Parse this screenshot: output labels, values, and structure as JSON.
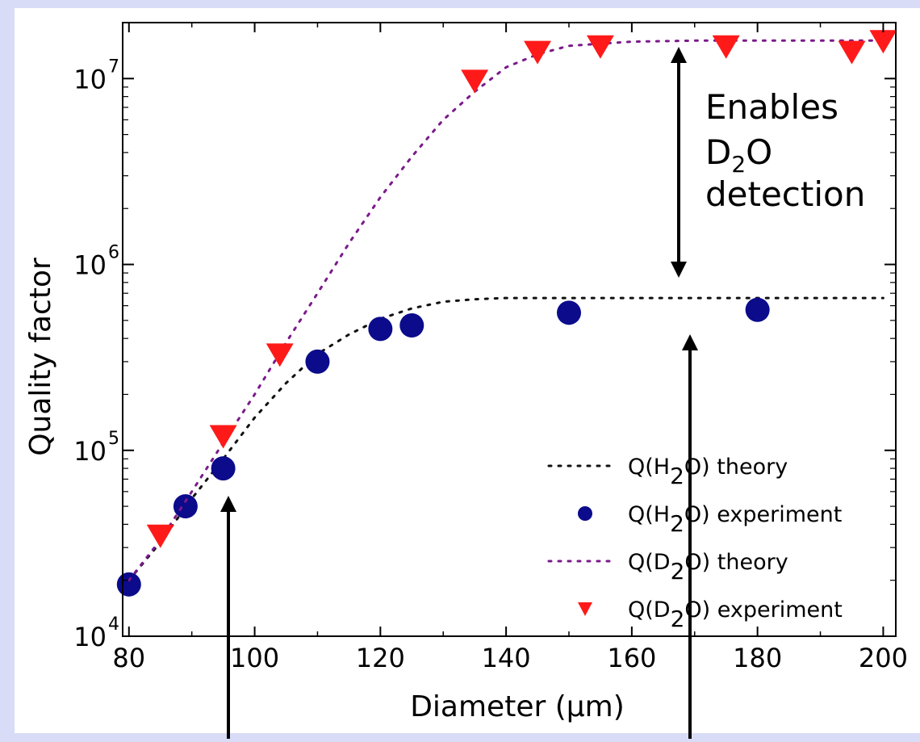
{
  "chart_data": {
    "type": "scatter",
    "xlabel": "Diameter (μm)",
    "ylabel": "Quality factor",
    "xlim": [
      79,
      202
    ],
    "ylim": [
      10000,
      20000000
    ],
    "y_scale": "log",
    "x_ticks": [
      "80",
      "100",
      "120",
      "140",
      "160",
      "180",
      "200"
    ],
    "y_ticks": [
      {
        "base": "10",
        "exp": "4"
      },
      {
        "base": "10",
        "exp": "5"
      },
      {
        "base": "10",
        "exp": "6"
      },
      {
        "base": "10",
        "exp": "7"
      }
    ],
    "grid": false,
    "legend_position": "bottom-right",
    "series": [
      {
        "name": "Q(H2O) theory",
        "style": "dotted-line",
        "color": "#111111",
        "x": [
          80,
          85,
          90,
          95,
          100,
          105,
          110,
          115,
          120,
          125,
          130,
          135,
          140,
          150,
          160,
          170,
          180,
          190,
          200
        ],
        "y": [
          20000,
          32000,
          55000,
          90000,
          150000,
          230000,
          330000,
          420000,
          510000,
          580000,
          630000,
          650000,
          660000,
          660000,
          660000,
          660000,
          660000,
          660000,
          660000
        ]
      },
      {
        "name": "Q(H2O) experiment",
        "style": "circle",
        "color": "#0b0b8c",
        "x": [
          80,
          89,
          95,
          110,
          120,
          125,
          150,
          180
        ],
        "y": [
          19000,
          50000,
          80000,
          300000,
          450000,
          470000,
          550000,
          570000
        ]
      },
      {
        "name": "Q(D2O) theory",
        "style": "dotted-line",
        "color": "#7a1a8a",
        "x": [
          80,
          85,
          90,
          95,
          100,
          105,
          110,
          115,
          120,
          125,
          130,
          135,
          140,
          145,
          150,
          160,
          170,
          180,
          190,
          200
        ],
        "y": [
          20000,
          33000,
          60000,
          110000,
          200000,
          380000,
          700000,
          1300000,
          2300000,
          3800000,
          6000000,
          8500000,
          11500000,
          13500000,
          15000000,
          15800000,
          16000000,
          16000000,
          16000000,
          16000000
        ]
      },
      {
        "name": "Q(D2O) experiment",
        "style": "triangle-down",
        "color": "#ff1a1a",
        "x": [
          85,
          95,
          104,
          135,
          145,
          155,
          175,
          195,
          200
        ],
        "y": [
          35000,
          120000,
          330000,
          9800000,
          14000000,
          15000000,
          15000000,
          14000000,
          16000000
        ]
      }
    ],
    "legend": [
      {
        "prefix": "Q(H",
        "sub": "2",
        "suffix": "O) theory",
        "marker": "line",
        "color": "#111111"
      },
      {
        "prefix": "Q(H",
        "sub": "2",
        "suffix": "O) experiment",
        "marker": "circle",
        "color": "#0b0b8c"
      },
      {
        "prefix": "Q(D",
        "sub": "2",
        "suffix": "O) theory",
        "marker": "line",
        "color": "#7a1a8a"
      },
      {
        "prefix": "Q(D",
        "sub": "2",
        "suffix": "O) experiment",
        "marker": "triangle",
        "color": "#ff1a1a"
      }
    ],
    "annotations": {
      "enables_lines": [
        "Enables",
        "detection"
      ],
      "d2o_prefix": "D",
      "d2o_sub": "2",
      "d2o_suffix": "O"
    }
  }
}
